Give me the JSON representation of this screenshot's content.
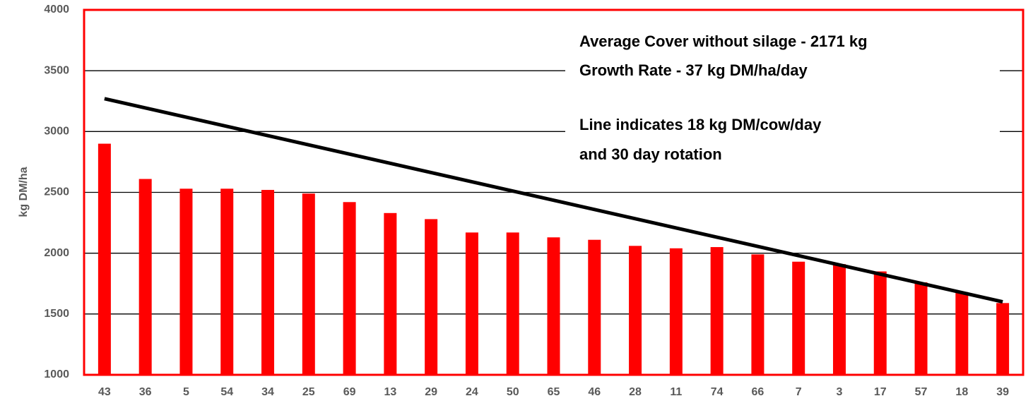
{
  "chart_data": {
    "type": "bar",
    "y_label": "kg DM/ha",
    "categories": [
      "43",
      "36",
      "5",
      "54",
      "34",
      "25",
      "69",
      "13",
      "29",
      "24",
      "50",
      "65",
      "46",
      "28",
      "11",
      "74",
      "66",
      "7",
      "3",
      "17",
      "57",
      "18",
      "39"
    ],
    "values": [
      2900,
      2610,
      2530,
      2530,
      2520,
      2490,
      2420,
      2330,
      2280,
      2170,
      2170,
      2130,
      2110,
      2060,
      2040,
      2050,
      1990,
      1930,
      1910,
      1850,
      1760,
      1680,
      1590
    ],
    "color": "#ff0000",
    "ylim": [
      1000,
      4000
    ],
    "yticks": [
      1000,
      1500,
      2000,
      2500,
      3000,
      3500,
      4000
    ],
    "grid": true,
    "line": {
      "categories": [
        "43",
        "39"
      ],
      "values": [
        3270,
        1600
      ],
      "color": "#000000"
    },
    "annotations": [
      "Average Cover without silage - 2171 kg",
      "Growth Rate -  37 kg DM/ha/day",
      "Line indicates 18 kg DM/cow/day",
      "and 30 day rotation"
    ]
  }
}
